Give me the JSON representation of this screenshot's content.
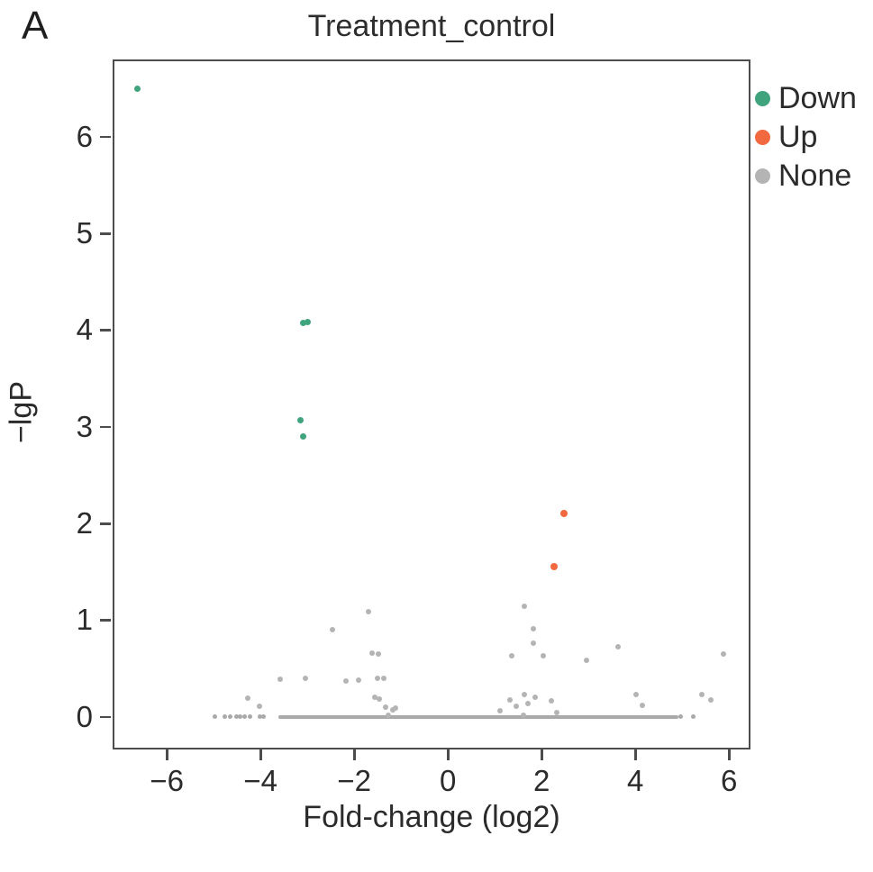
{
  "panel_label": "A",
  "legend": {
    "items": [
      {
        "label": "Down",
        "color": "#3fa47d"
      },
      {
        "label": "Up",
        "color": "#f2683f"
      },
      {
        "label": "None",
        "color": "#b4b4b4"
      }
    ]
  },
  "chart_data": {
    "type": "scatter",
    "title": "Treatment_control",
    "xlabel": "Fold-change (log2)",
    "ylabel": "−lgP",
    "xlim": [
      -7.12,
      6.42
    ],
    "ylim": [
      -0.32,
      6.78
    ],
    "grid": false,
    "legend_position": "right-outside",
    "x_ticks": [
      {
        "value": -6,
        "label": "−6"
      },
      {
        "value": -4,
        "label": "−4"
      },
      {
        "value": -2,
        "label": "−2"
      },
      {
        "value": 0,
        "label": "0"
      },
      {
        "value": 2,
        "label": "2"
      },
      {
        "value": 4,
        "label": "4"
      },
      {
        "value": 6,
        "label": "6"
      }
    ],
    "y_ticks": [
      {
        "value": 0,
        "label": "0"
      },
      {
        "value": 1,
        "label": "1"
      },
      {
        "value": 2,
        "label": "2"
      },
      {
        "value": 3,
        "label": "3"
      },
      {
        "value": 4,
        "label": "4"
      },
      {
        "value": 5,
        "label": "5"
      },
      {
        "value": 6,
        "label": "6"
      }
    ],
    "series": [
      {
        "name": "Down",
        "color": "#3fa47d",
        "size": 7,
        "points": [
          [
            -6.63,
            6.5
          ],
          [
            -3.1,
            4.07
          ],
          [
            -3.0,
            4.08
          ],
          [
            -3.15,
            3.07
          ],
          [
            -3.1,
            2.9
          ]
        ]
      },
      {
        "name": "Up",
        "color": "#f2683f",
        "size": 8,
        "points": [
          [
            2.48,
            2.1
          ],
          [
            2.26,
            1.55
          ]
        ]
      },
      {
        "name": "None",
        "color": "#b4b4b4",
        "size": 6,
        "points": [
          [
            -4.27,
            0.19
          ],
          [
            -4.02,
            0.11
          ],
          [
            -3.58,
            0.39
          ],
          [
            -3.04,
            0.4
          ],
          [
            -2.47,
            0.9
          ],
          [
            -2.18,
            0.37
          ],
          [
            -1.9,
            0.38
          ],
          [
            -1.69,
            1.09
          ],
          [
            -1.62,
            0.66
          ],
          [
            -1.48,
            0.65
          ],
          [
            -1.56,
            0.2
          ],
          [
            -1.46,
            0.18
          ],
          [
            -1.5,
            0.4
          ],
          [
            -1.37,
            0.4
          ],
          [
            -1.34,
            0.1
          ],
          [
            -1.27,
            0.02
          ],
          [
            -1.18,
            0.07
          ],
          [
            -1.12,
            0.09
          ],
          [
            1.12,
            0.06
          ],
          [
            1.33,
            0.17
          ],
          [
            1.37,
            0.63
          ],
          [
            1.46,
            0.11
          ],
          [
            1.62,
            0.02
          ],
          [
            1.63,
            0.23
          ],
          [
            1.64,
            1.14
          ],
          [
            1.71,
            0.14
          ],
          [
            1.82,
            0.91
          ],
          [
            1.83,
            0.76
          ],
          [
            1.86,
            0.2
          ],
          [
            2.04,
            0.63
          ],
          [
            2.21,
            0.16
          ],
          [
            2.33,
            0.04
          ],
          [
            2.95,
            0.58
          ],
          [
            3.64,
            0.72
          ],
          [
            4.01,
            0.23
          ],
          [
            4.15,
            0.12
          ],
          [
            5.42,
            0.23
          ],
          [
            5.61,
            0.17
          ],
          [
            5.89,
            0.65
          ]
        ]
      }
    ],
    "baseline": {
      "name": "None",
      "color": "#a9a9a9",
      "y": 0,
      "dense_segment": [
        -3.62,
        4.92
      ],
      "point_xs": [
        -4.97,
        -4.76,
        -4.65,
        -4.52,
        -4.44,
        -4.35,
        -4.23,
        -4.01,
        -3.94,
        4.97,
        5.24
      ]
    }
  }
}
